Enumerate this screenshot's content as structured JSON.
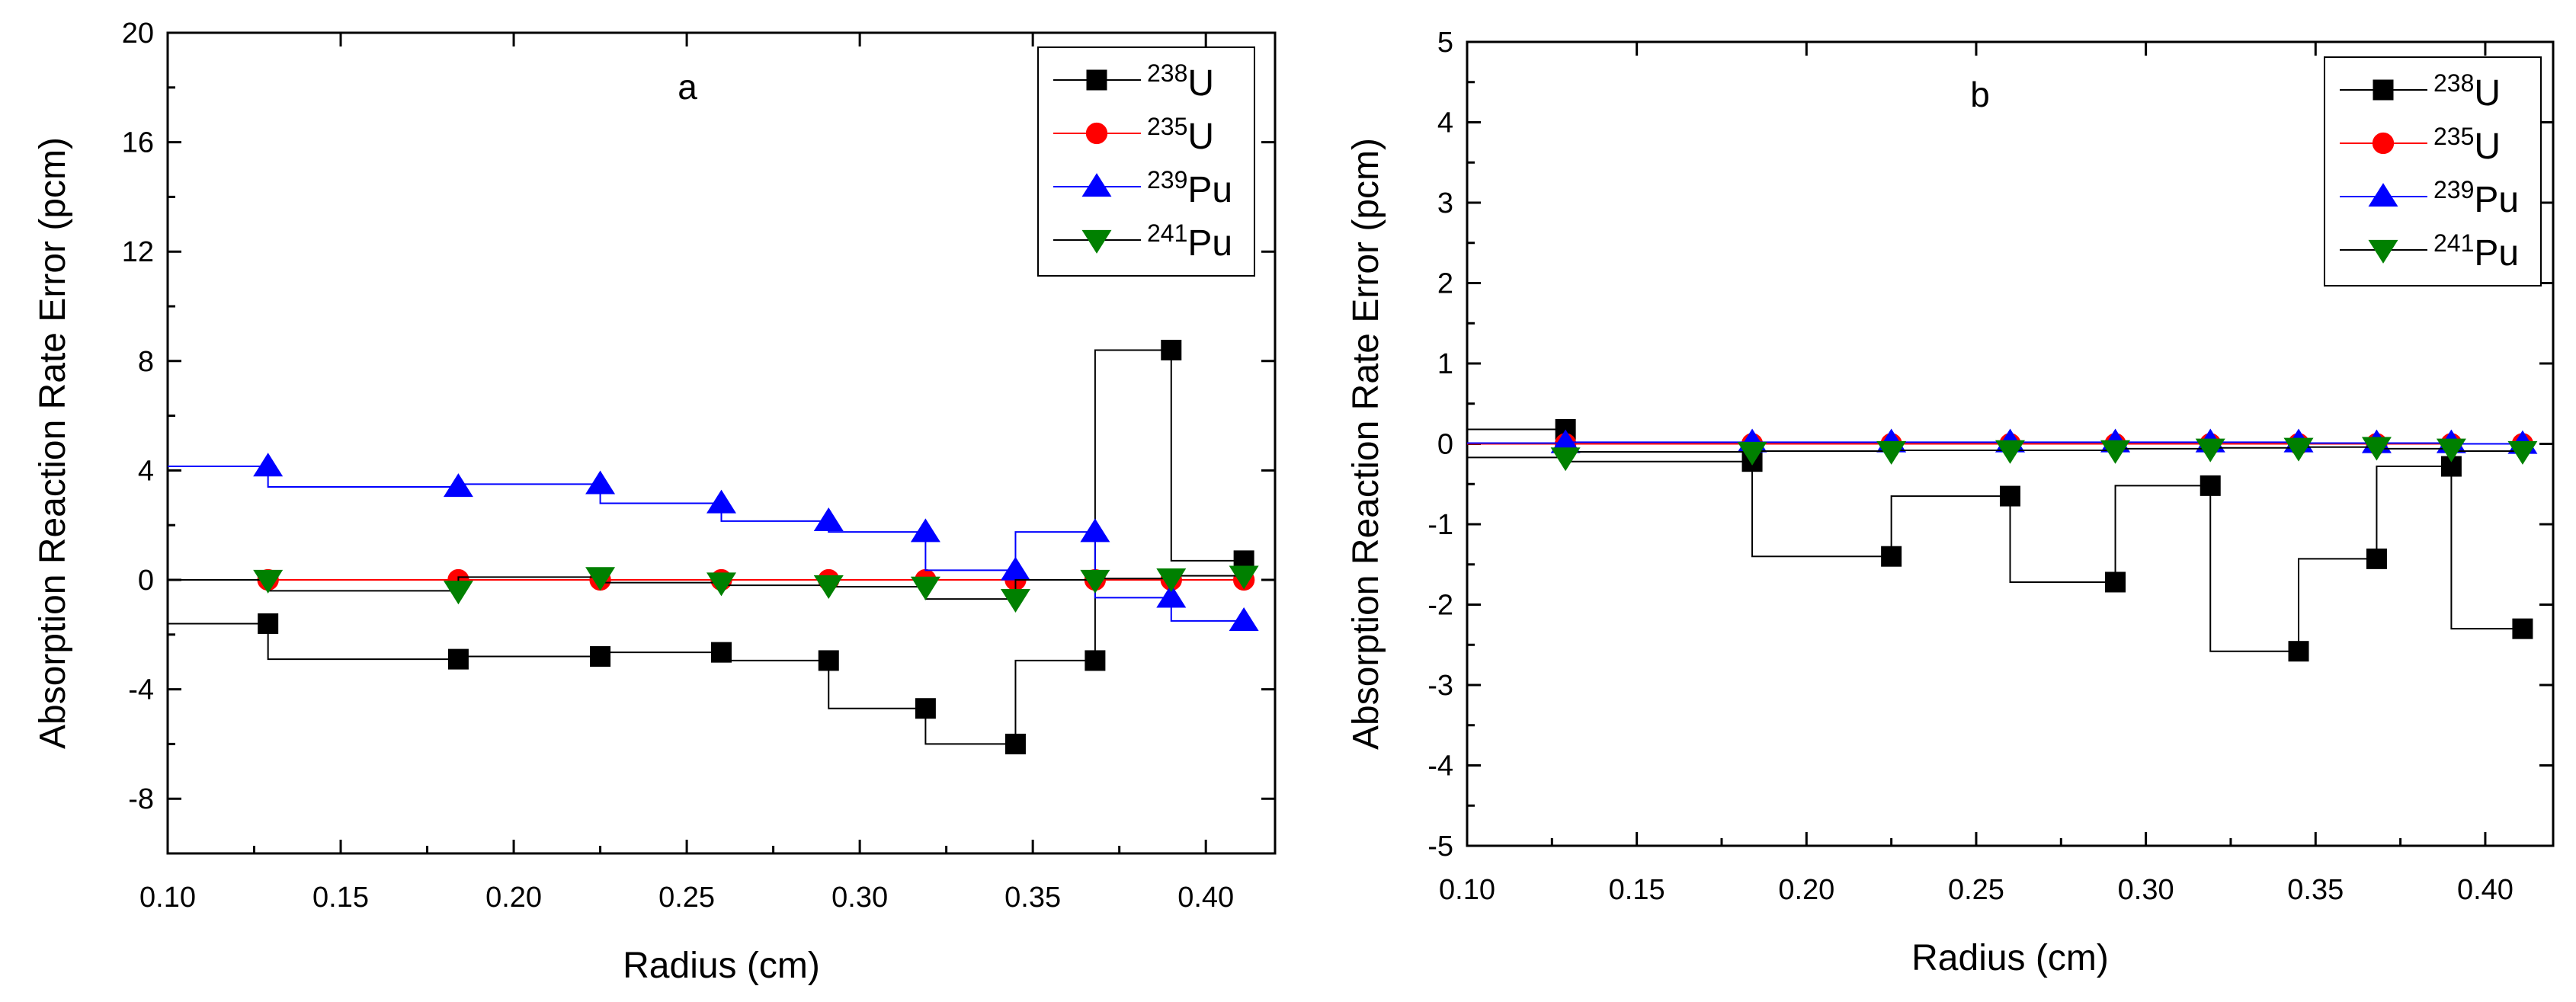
{
  "chart_data": [
    {
      "type": "line",
      "panel_label": "a",
      "xlabel": "Radius (cm)",
      "ylabel": "Absorption Reaction Rate Error (pcm)",
      "xlim": [
        0.1,
        0.42
      ],
      "ylim": [
        -10,
        20
      ],
      "xticks": [
        0.1,
        0.15,
        0.2,
        0.25,
        0.3,
        0.35,
        0.4
      ],
      "yticks": [
        -8,
        -4,
        0,
        4,
        8,
        12,
        16,
        20
      ],
      "xtick_labels": [
        "0.10",
        "0.15",
        "0.20",
        "0.25",
        "0.30",
        "0.35",
        "0.40"
      ],
      "ytick_labels": [
        "-8",
        "-4",
        "0",
        "4",
        "8",
        "12",
        "16",
        "20"
      ],
      "x": [
        0.129,
        0.184,
        0.225,
        0.26,
        0.291,
        0.319,
        0.345,
        0.368,
        0.39,
        0.411
      ],
      "legend_position": "top-right",
      "series": [
        {
          "name": "U",
          "mass": "238",
          "marker": "square",
          "color": "#000000",
          "line_color": "#000000",
          "values": [
            -1.6,
            -2.9,
            -2.8,
            -2.65,
            -2.95,
            -4.7,
            -6.0,
            -2.95,
            8.4,
            0.7
          ]
        },
        {
          "name": "U",
          "mass": "235",
          "marker": "circle",
          "color": "#ff0000",
          "line_color": "#ff0000",
          "values": [
            0.0,
            0.0,
            0.0,
            0.0,
            0.0,
            0.0,
            0.0,
            0.0,
            0.0,
            0.0
          ]
        },
        {
          "name": "Pu",
          "mass": "239",
          "marker": "triangle-up",
          "color": "#0000ff",
          "line_color": "#0000ff",
          "values": [
            4.15,
            3.4,
            3.5,
            2.8,
            2.15,
            1.75,
            0.35,
            1.75,
            -0.65,
            -1.5
          ]
        },
        {
          "name": "Pu",
          "mass": "241",
          "marker": "triangle-down",
          "color": "#008000",
          "line_color": "#000000",
          "values": [
            0.0,
            -0.4,
            0.1,
            -0.1,
            -0.2,
            -0.25,
            -0.7,
            0.0,
            0.05,
            0.15
          ]
        }
      ]
    },
    {
      "type": "line",
      "panel_label": "b",
      "xlabel": "Radius (cm)",
      "ylabel": "Absorption Reaction Rate Error (pcm)",
      "xlim": [
        0.1,
        0.42
      ],
      "ylim": [
        -5,
        5
      ],
      "xticks": [
        0.1,
        0.15,
        0.2,
        0.25,
        0.3,
        0.35,
        0.4
      ],
      "yticks": [
        -5,
        -4,
        -3,
        -2,
        -1,
        0,
        1,
        2,
        3,
        4,
        5
      ],
      "xtick_labels": [
        "0.10",
        "0.15",
        "0.20",
        "0.25",
        "0.30",
        "0.35",
        "0.40"
      ],
      "ytick_labels": [
        "-5",
        "-4",
        "-3",
        "-2",
        "-1",
        "0",
        "1",
        "2",
        "3",
        "4",
        "5"
      ],
      "x": [
        0.129,
        0.184,
        0.225,
        0.26,
        0.291,
        0.319,
        0.345,
        0.368,
        0.39,
        0.411
      ],
      "legend_position": "top-right",
      "series": [
        {
          "name": "U",
          "mass": "238",
          "marker": "square",
          "color": "#000000",
          "line_color": "#000000",
          "values": [
            0.18,
            -0.22,
            -1.4,
            -0.65,
            -1.72,
            -0.52,
            -2.58,
            -1.43,
            -0.28,
            -2.3
          ]
        },
        {
          "name": "U",
          "mass": "235",
          "marker": "circle",
          "color": "#ff0000",
          "line_color": "#ff0000",
          "values": [
            0.0,
            0.0,
            0.0,
            0.0,
            0.0,
            0.0,
            0.0,
            0.0,
            0.0,
            0.0
          ]
        },
        {
          "name": "Pu",
          "mass": "239",
          "marker": "triangle-up",
          "color": "#0000ff",
          "line_color": "#0000ff",
          "values": [
            0.01,
            0.02,
            0.02,
            0.02,
            0.02,
            0.02,
            0.02,
            0.01,
            0.01,
            0.0
          ]
        },
        {
          "name": "Pu",
          "mass": "241",
          "marker": "triangle-down",
          "color": "#008000",
          "line_color": "#000000",
          "values": [
            -0.17,
            -0.1,
            -0.09,
            -0.08,
            -0.08,
            -0.06,
            -0.05,
            -0.04,
            -0.06,
            -0.09
          ]
        }
      ]
    }
  ]
}
